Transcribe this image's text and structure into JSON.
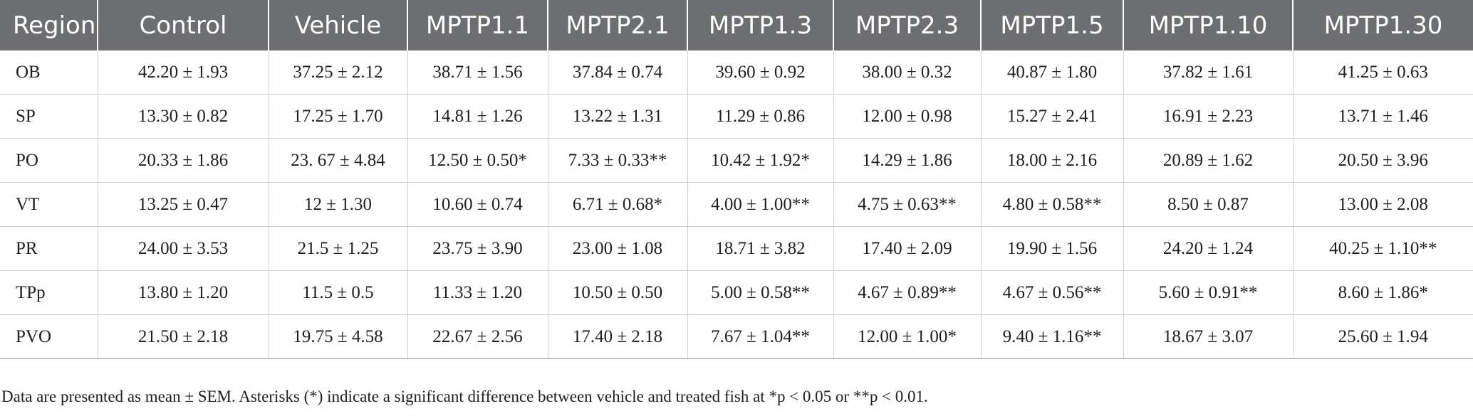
{
  "table": {
    "headers": [
      "Region",
      "Control",
      "Vehicle",
      "MPTP1.1",
      "MPTP2.1",
      "MPTP1.3",
      "MPTP2.3",
      "MPTP1.5",
      "MPTP1.10",
      "MPTP1.30"
    ],
    "rows": [
      [
        "OB",
        "42.20 ± 1.93",
        "37.25 ± 2.12",
        "38.71 ± 1.56",
        "37.84 ± 0.74",
        "39.60 ± 0.92",
        "38.00 ± 0.32",
        "40.87 ± 1.80",
        "37.82 ± 1.61",
        "41.25 ± 0.63"
      ],
      [
        "SP",
        "13.30 ± 0.82",
        "17.25 ± 1.70",
        "14.81 ± 1.26",
        "13.22 ± 1.31",
        "11.29 ± 0.86",
        "12.00 ± 0.98",
        "15.27 ± 2.41",
        "16.91 ± 2.23",
        "13.71 ± 1.46"
      ],
      [
        "PO",
        "20.33 ± 1.86",
        "23. 67 ± 4.84",
        "12.50 ± 0.50*",
        "7.33 ± 0.33**",
        "10.42 ± 1.92*",
        "14.29 ± 1.86",
        "18.00 ± 2.16",
        "20.89 ± 1.62",
        "20.50 ± 3.96"
      ],
      [
        "VT",
        "13.25 ± 0.47",
        "12 ± 1.30",
        "10.60 ± 0.74",
        "6.71 ± 0.68*",
        "4.00 ± 1.00**",
        "4.75 ± 0.63**",
        "4.80 ± 0.58**",
        "8.50 ± 0.87",
        "13.00 ± 2.08"
      ],
      [
        "PR",
        "24.00 ± 3.53",
        "21.5 ± 1.25",
        "23.75 ± 3.90",
        "23.00 ± 1.08",
        "18.71 ± 3.82",
        "17.40 ± 2.09",
        "19.90 ± 1.56",
        "24.20 ± 1.24",
        "40.25 ± 1.10**"
      ],
      [
        "TPp",
        "13.80 ± 1.20",
        "11.5 ± 0.5",
        "11.33 ± 1.20",
        "10.50 ± 0.50",
        "5.00 ± 0.58**",
        "4.67 ± 0.89**",
        "4.67 ± 0.56**",
        "5.60 ± 0.91**",
        "8.60 ± 1.86*"
      ],
      [
        "PVO",
        "21.50 ± 2.18",
        "19.75 ± 4.58",
        "22.67 ± 2.56",
        "17.40 ± 2.18",
        "7.67 ± 1.04**",
        "12.00 ± 1.00*",
        "9.40 ± 1.16**",
        "18.67 ± 3.07",
        "25.60 ± 1.94"
      ]
    ]
  },
  "footnote": "Data are presented as mean ± SEM. Asterisks (*) indicate a significant difference between vehicle and treated fish at *p < 0.05 or **p < 0.01."
}
